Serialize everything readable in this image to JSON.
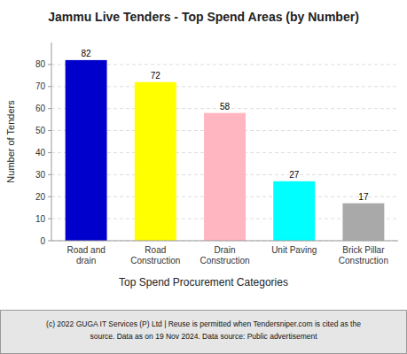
{
  "chart_data": {
    "type": "bar",
    "title": "Jammu Live Tenders - Top Spend Areas (by Number)",
    "categories": [
      "Road and\ndrain",
      "Road\nConstruction",
      "Drain\nConstruction",
      "Unit Paving",
      "Brick Pillar\nConstruction"
    ],
    "values": [
      82,
      72,
      58,
      27,
      17
    ],
    "colors": [
      "#0000cc",
      "#ffff00",
      "#ffb6c1",
      "#00ffff",
      "#a9a9a9"
    ],
    "xlabel": "Top Spend Procurement Categories",
    "ylabel": "Number of Tenders",
    "ylim": [
      0,
      90
    ],
    "yticks": [
      0,
      10,
      20,
      30,
      40,
      50,
      60,
      70,
      80
    ],
    "grid": true,
    "data_labels": true,
    "annotations": [
      "(c) 2022 GUGA IT Services (P) Ltd | Reuse is permitted when Tendersniper.com is cited as the",
      "source. Data as on 19 Nov 2024. Data source: Public advertisement"
    ]
  }
}
